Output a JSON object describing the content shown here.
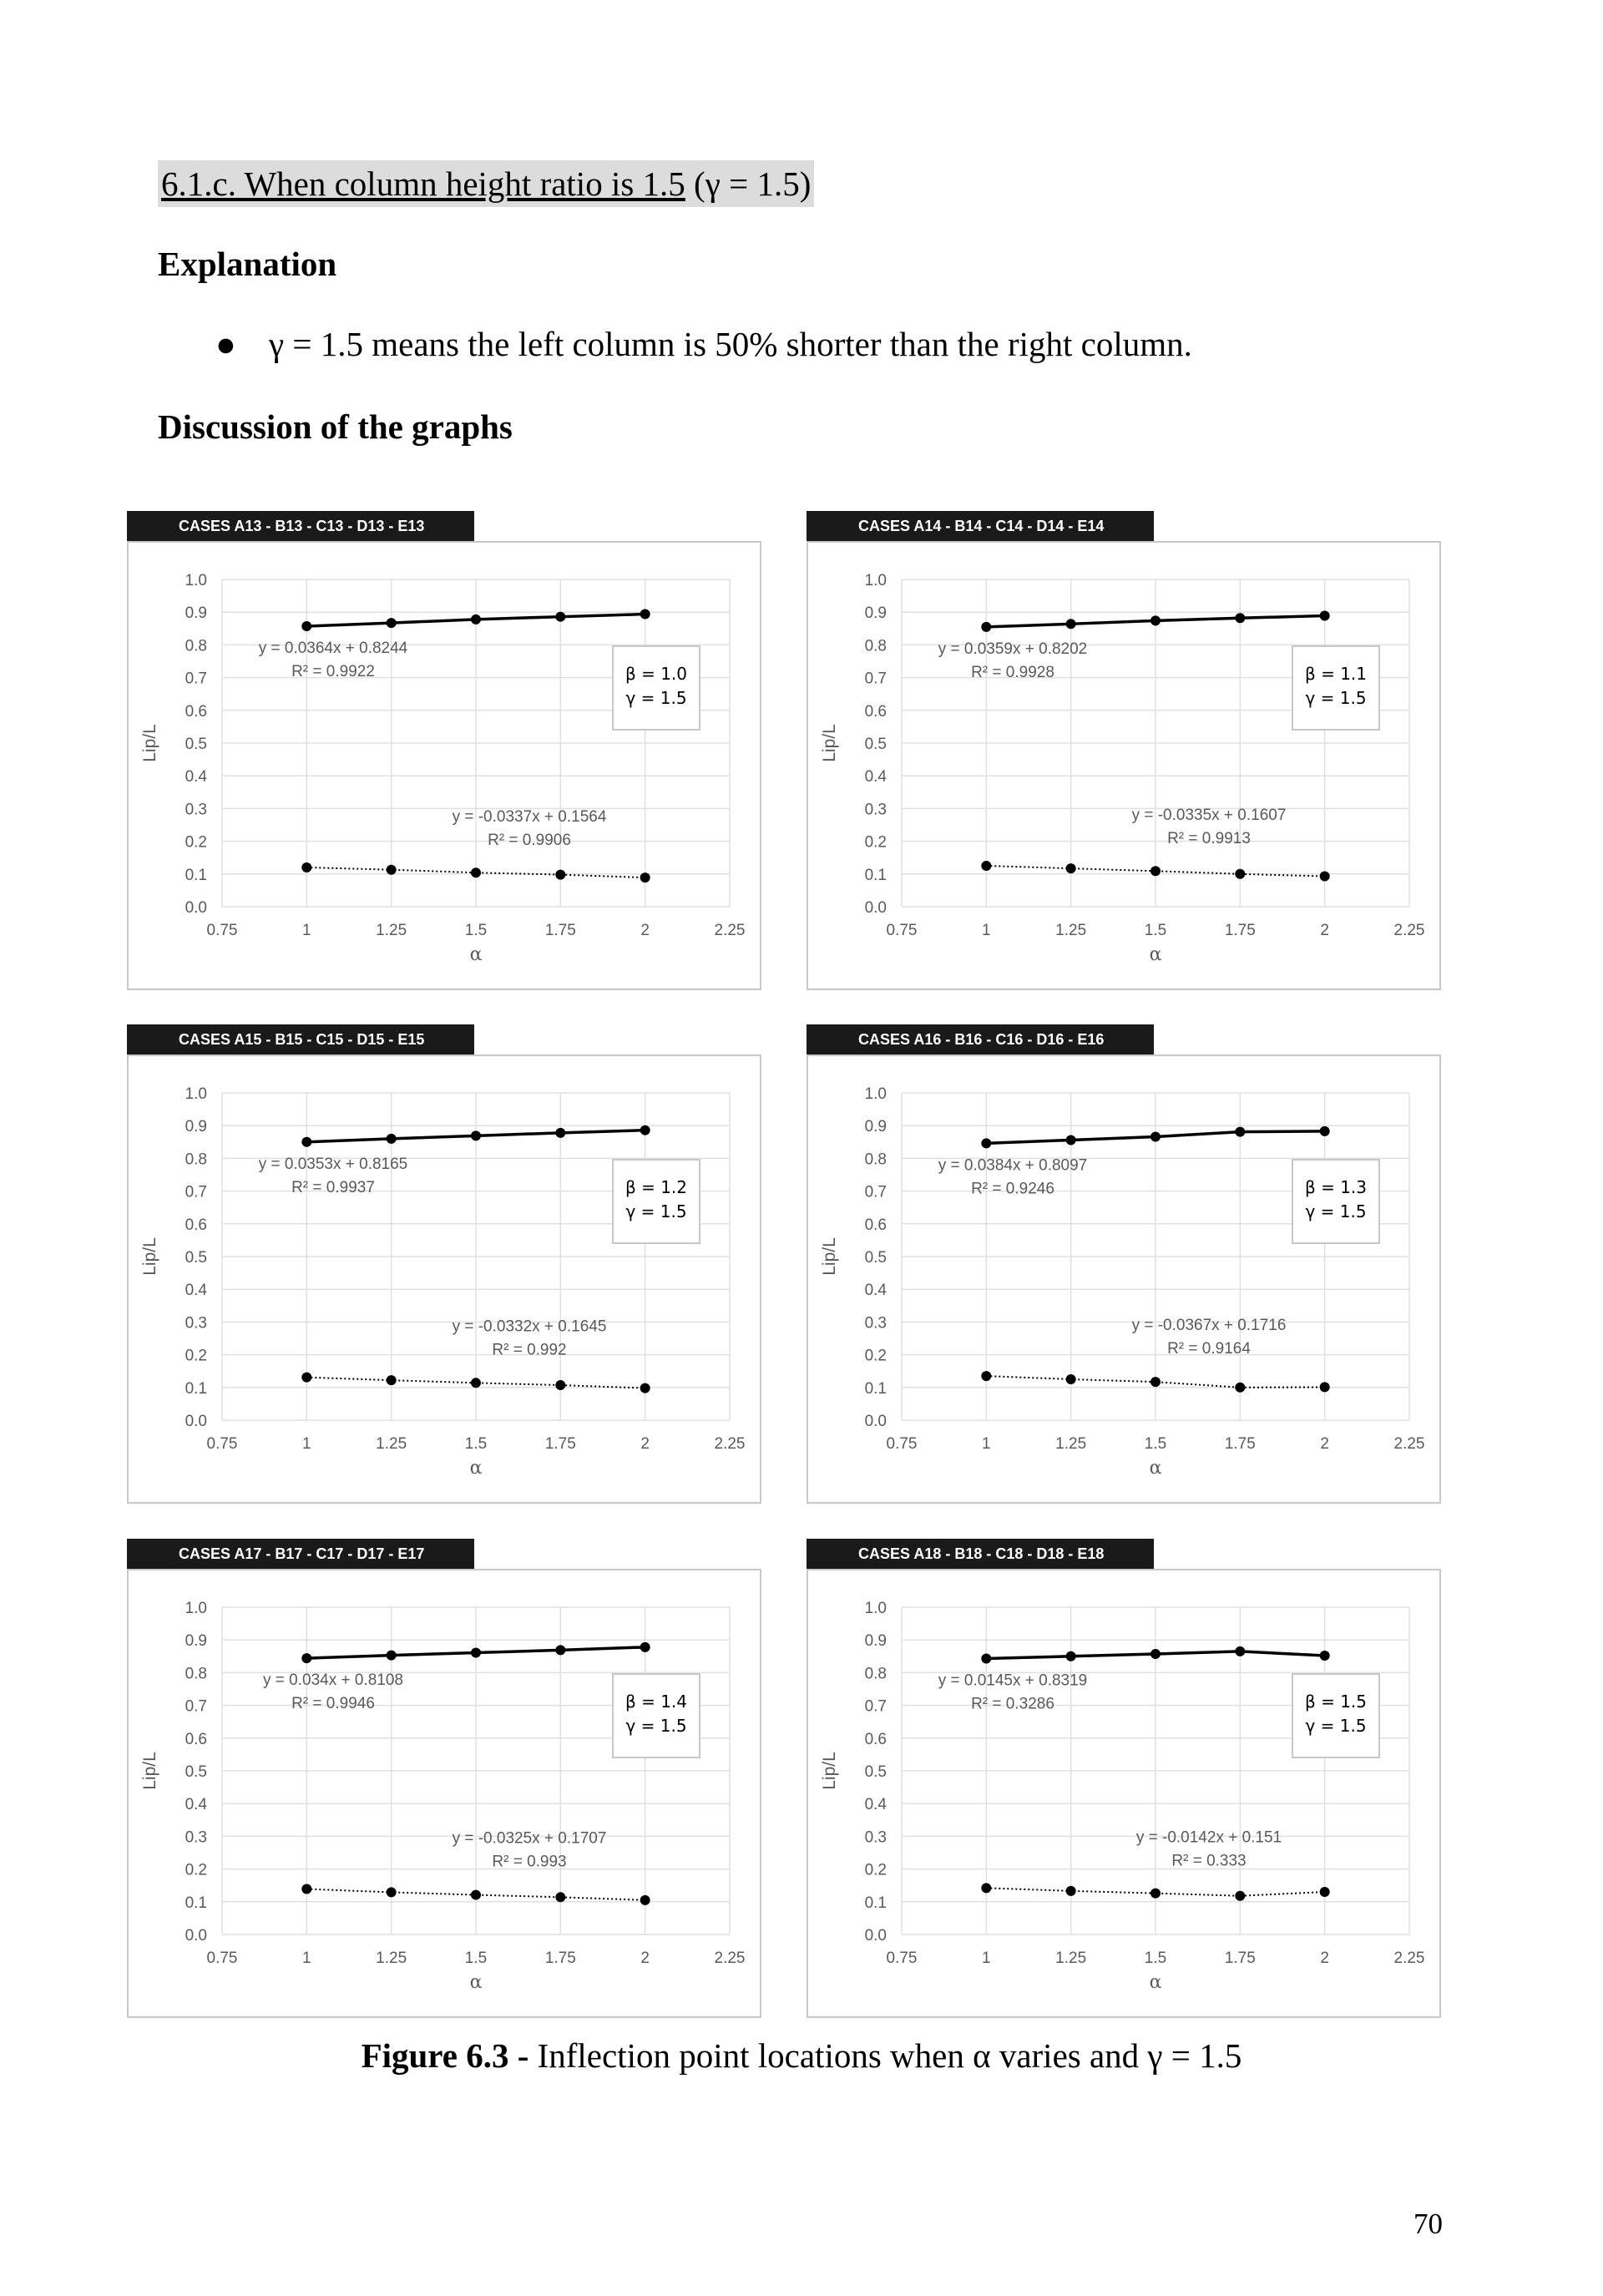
{
  "heading": {
    "underlined": "6.1.c. When column height ratio is 1.5",
    "math": " (γ = 1.5)"
  },
  "explanation_title": "Explanation",
  "bullet": {
    "symbol": "●",
    "text": "γ = 1.5 means the left column is 50% shorter than the right column."
  },
  "discussion_title": "Discussion of the graphs",
  "caption": {
    "bold": "Figure 6.3 -",
    "text": " Inflection point locations when α varies and γ = 1.5"
  },
  "page_number": "70",
  "chart_data": [
    {
      "type": "scatter",
      "title": "CASES A13 - B13 - C13 - D13 - E13",
      "xlabel": "α",
      "ylabel": "Lip/L",
      "xlim": [
        0.75,
        2.25
      ],
      "ylim": [
        0.0,
        1.0
      ],
      "xticks": [
        "0.75",
        "1",
        "1.25",
        "1.5",
        "1.75",
        "2",
        "2.25"
      ],
      "yticks": [
        "0.0",
        "0.1",
        "0.2",
        "0.3",
        "0.4",
        "0.5",
        "0.6",
        "0.7",
        "0.8",
        "0.9",
        "1.0"
      ],
      "legend": [
        "β = 1.0",
        "γ = 1.5"
      ],
      "series": [
        {
          "x": [
            1,
            1.25,
            1.5,
            1.75,
            2
          ],
          "y": [
            0.857,
            0.867,
            0.878,
            0.886,
            0.894
          ],
          "style": "solid",
          "trend": [
            "y = 0.0364x + 0.8244",
            "R² = 0.9922"
          ]
        },
        {
          "x": [
            1,
            1.25,
            1.5,
            1.75,
            2
          ],
          "y": [
            0.12,
            0.113,
            0.104,
            0.098,
            0.089
          ],
          "style": "dotted",
          "trend": [
            "y = -0.0337x + 0.1564",
            "R² = 0.9906"
          ]
        }
      ]
    },
    {
      "type": "scatter",
      "title": "CASES A14 - B14 - C14 - D14 - E14",
      "xlabel": "α",
      "ylabel": "Lip/L",
      "xlim": [
        0.75,
        2.25
      ],
      "ylim": [
        0.0,
        1.0
      ],
      "xticks": [
        "0.75",
        "1",
        "1.25",
        "1.5",
        "1.75",
        "2",
        "2.25"
      ],
      "yticks": [
        "0.0",
        "0.1",
        "0.2",
        "0.3",
        "0.4",
        "0.5",
        "0.6",
        "0.7",
        "0.8",
        "0.9",
        "1.0"
      ],
      "legend": [
        "β = 1.1",
        "γ = 1.5"
      ],
      "series": [
        {
          "x": [
            1,
            1.25,
            1.5,
            1.75,
            2
          ],
          "y": [
            0.855,
            0.864,
            0.874,
            0.882,
            0.889
          ],
          "style": "solid",
          "trend": [
            "y = 0.0359x + 0.8202",
            "R² = 0.9928"
          ]
        },
        {
          "x": [
            1,
            1.25,
            1.5,
            1.75,
            2
          ],
          "y": [
            0.125,
            0.117,
            0.109,
            0.1,
            0.093
          ],
          "style": "dotted",
          "trend": [
            "y = -0.0335x + 0.1607",
            "R² = 0.9913"
          ]
        }
      ]
    },
    {
      "type": "scatter",
      "title": "CASES A15 - B15 - C15 - D15 - E15",
      "xlabel": "α",
      "ylabel": "Lip/L",
      "xlim": [
        0.75,
        2.25
      ],
      "ylim": [
        0.0,
        1.0
      ],
      "xticks": [
        "0.75",
        "1",
        "1.25",
        "1.5",
        "1.75",
        "2",
        "2.25"
      ],
      "yticks": [
        "0.0",
        "0.1",
        "0.2",
        "0.3",
        "0.4",
        "0.5",
        "0.6",
        "0.7",
        "0.8",
        "0.9",
        "1.0"
      ],
      "legend": [
        "β = 1.2",
        "γ = 1.5"
      ],
      "series": [
        {
          "x": [
            1,
            1.25,
            1.5,
            1.75,
            2
          ],
          "y": [
            0.85,
            0.86,
            0.869,
            0.878,
            0.886
          ],
          "style": "solid",
          "trend": [
            "y = 0.0353x + 0.8165",
            "R² = 0.9937"
          ]
        },
        {
          "x": [
            1,
            1.25,
            1.5,
            1.75,
            2
          ],
          "y": [
            0.131,
            0.122,
            0.114,
            0.107,
            0.098
          ],
          "style": "dotted",
          "trend": [
            "y = -0.0332x + 0.1645",
            "R² = 0.992"
          ]
        }
      ]
    },
    {
      "type": "scatter",
      "title": "CASES A16 - B16 - C16 - D16 - E16",
      "xlabel": "α",
      "ylabel": "Lip/L",
      "xlim": [
        0.75,
        2.25
      ],
      "ylim": [
        0.0,
        1.0
      ],
      "xticks": [
        "0.75",
        "1",
        "1.25",
        "1.5",
        "1.75",
        "2",
        "2.25"
      ],
      "yticks": [
        "0.0",
        "0.1",
        "0.2",
        "0.3",
        "0.4",
        "0.5",
        "0.6",
        "0.7",
        "0.8",
        "0.9",
        "1.0"
      ],
      "legend": [
        "β = 1.3",
        "γ = 1.5"
      ],
      "series": [
        {
          "x": [
            1,
            1.25,
            1.5,
            1.75,
            2
          ],
          "y": [
            0.846,
            0.856,
            0.866,
            0.881,
            0.883
          ],
          "style": "solid",
          "trend": [
            "y = 0.0384x + 0.8097",
            "R² = 0.9246"
          ]
        },
        {
          "x": [
            1,
            1.25,
            1.5,
            1.75,
            2
          ],
          "y": [
            0.135,
            0.125,
            0.117,
            0.1,
            0.101
          ],
          "style": "dotted",
          "trend": [
            "y = -0.0367x + 0.1716",
            "R² = 0.9164"
          ]
        }
      ]
    },
    {
      "type": "scatter",
      "title": "CASES A17 - B17 - C17 - D17 - E17",
      "xlabel": "α",
      "ylabel": "Lip/L",
      "xlim": [
        0.75,
        2.25
      ],
      "ylim": [
        0.0,
        1.0
      ],
      "xticks": [
        "0.75",
        "1",
        "1.25",
        "1.5",
        "1.75",
        "2",
        "2.25"
      ],
      "yticks": [
        "0.0",
        "0.1",
        "0.2",
        "0.3",
        "0.4",
        "0.5",
        "0.6",
        "0.7",
        "0.8",
        "0.9",
        "1.0"
      ],
      "legend": [
        "β = 1.4",
        "γ = 1.5"
      ],
      "series": [
        {
          "x": [
            1,
            1.25,
            1.5,
            1.75,
            2
          ],
          "y": [
            0.844,
            0.853,
            0.861,
            0.869,
            0.878
          ],
          "style": "solid",
          "trend": [
            "y = 0.034x + 0.8108",
            "R² = 0.9946"
          ]
        },
        {
          "x": [
            1,
            1.25,
            1.5,
            1.75,
            2
          ],
          "y": [
            0.139,
            0.129,
            0.121,
            0.114,
            0.105
          ],
          "style": "dotted",
          "trend": [
            "y = -0.0325x + 0.1707",
            "R² = 0.993"
          ]
        }
      ]
    },
    {
      "type": "scatter",
      "title": "CASES A18 - B18 - C18 - D18 - E18",
      "xlabel": "α",
      "ylabel": "Lip/L",
      "xlim": [
        0.75,
        2.25
      ],
      "ylim": [
        0.0,
        1.0
      ],
      "xticks": [
        "0.75",
        "1",
        "1.25",
        "1.5",
        "1.75",
        "2",
        "2.25"
      ],
      "yticks": [
        "0.0",
        "0.1",
        "0.2",
        "0.3",
        "0.4",
        "0.5",
        "0.6",
        "0.7",
        "0.8",
        "0.9",
        "1.0"
      ],
      "legend": [
        "β = 1.5",
        "γ = 1.5"
      ],
      "series": [
        {
          "x": [
            1,
            1.25,
            1.5,
            1.75,
            2
          ],
          "y": [
            0.843,
            0.85,
            0.857,
            0.865,
            0.852
          ],
          "style": "solid",
          "trend": [
            "y = 0.0145x + 0.8319",
            "R² = 0.3286"
          ]
        },
        {
          "x": [
            1,
            1.25,
            1.5,
            1.75,
            2
          ],
          "y": [
            0.142,
            0.133,
            0.126,
            0.118,
            0.13
          ],
          "style": "dotted",
          "trend": [
            "y = -0.0142x + 0.151",
            "R² = 0.333"
          ]
        }
      ]
    }
  ]
}
